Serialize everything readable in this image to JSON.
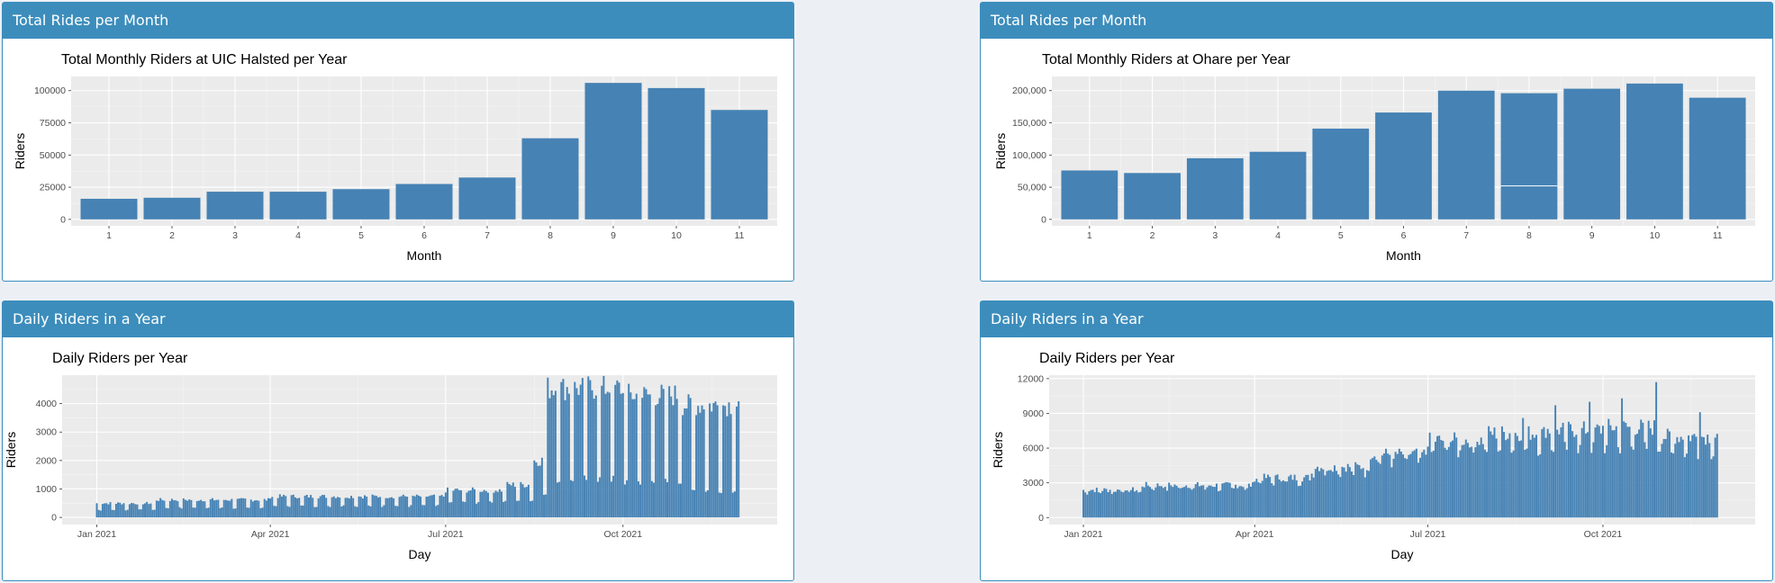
{
  "panels": [
    {
      "header": "Total Rides per Month",
      "chart_data": {
        "type": "bar",
        "title": "Total Monthly Riders at UIC Halsted per Year",
        "xlabel": "Month",
        "ylabel": "Riders",
        "categories": [
          "1",
          "2",
          "3",
          "4",
          "5",
          "6",
          "7",
          "8",
          "9",
          "10",
          "11"
        ],
        "values": [
          16000,
          16800,
          21500,
          21500,
          23500,
          27500,
          32500,
          63000,
          106000,
          102000,
          85000
        ],
        "ylim": [
          -5000,
          111000
        ],
        "yticks": [
          0,
          25000,
          50000,
          75000,
          100000
        ],
        "ytick_labels": [
          "0",
          "25000",
          "50000",
          "75000",
          "100000"
        ],
        "grid": true,
        "bar_color": "#4682b4"
      }
    },
    {
      "header": "Total Rides per Month",
      "chart_data": {
        "type": "bar",
        "title": "Total Monthly Riders at Ohare per Year",
        "xlabel": "Month",
        "ylabel": "Riders",
        "categories": [
          "1",
          "2",
          "3",
          "4",
          "5",
          "6",
          "7",
          "8",
          "9",
          "10",
          "11"
        ],
        "values": [
          76000,
          72000,
          95000,
          105000,
          141000,
          166000,
          200000,
          196000,
          203000,
          211000,
          189000
        ],
        "stack_split": {
          "category": "8",
          "at": 52000
        },
        "ylim": [
          -10000,
          222000
        ],
        "yticks": [
          0,
          50000,
          100000,
          150000,
          200000
        ],
        "ytick_labels": [
          "0",
          "50,000",
          "100,000",
          "150,000",
          "200,000"
        ],
        "grid": true,
        "bar_color": "#4682b4"
      }
    },
    {
      "header": "Daily Riders in a Year",
      "chart_data": {
        "type": "bar",
        "title": "Daily Riders per Year",
        "xlabel": "Day",
        "ylabel": "Riders",
        "x_start": "2021-01-01",
        "x_end": "2021-11-30",
        "xticks": [
          "2021-01-01",
          "2021-04-01",
          "2021-07-01",
          "2021-10-01"
        ],
        "xtick_labels": [
          "Jan 2021",
          "Apr 2021",
          "Jul 2021",
          "Oct 2021"
        ],
        "ylim": [
          -250,
          5000
        ],
        "yticks": [
          0,
          1000,
          2000,
          3000,
          4000
        ],
        "ytick_labels": [
          "0",
          "1000",
          "2000",
          "3000",
          "4000"
        ],
        "weekly_pattern": [
          {
            "end_date": "2021-01-31",
            "weekday": 500,
            "weekend": 260
          },
          {
            "end_date": "2021-03-31",
            "weekday": 620,
            "weekend": 330
          },
          {
            "end_date": "2021-06-30",
            "weekday": 740,
            "weekend": 400
          },
          {
            "end_date": "2021-07-31",
            "weekday": 960,
            "weekend": 520
          },
          {
            "end_date": "2021-08-15",
            "weekday": 1150,
            "weekend": 600
          },
          {
            "end_date": "2021-08-22",
            "weekday": 2000,
            "weekend": 800
          },
          {
            "end_date": "2021-09-30",
            "weekday": 4550,
            "weekend": 1350
          },
          {
            "end_date": "2021-10-31",
            "weekday": 4300,
            "weekend": 1250
          },
          {
            "end_date": "2021-11-30",
            "weekday": 3950,
            "weekend": 950
          }
        ],
        "grid": true,
        "bar_color": "#4682b4"
      }
    },
    {
      "header": "Daily Riders in a Year",
      "chart_data": {
        "type": "bar",
        "title": "Daily Riders per Year",
        "xlabel": "Day",
        "ylabel": "Riders",
        "x_start": "2021-01-01",
        "x_end": "2021-11-30",
        "xticks": [
          "2021-01-01",
          "2021-04-01",
          "2021-07-01",
          "2021-10-01"
        ],
        "xtick_labels": [
          "Jan 2021",
          "Apr 2021",
          "Jul 2021",
          "Oct 2021"
        ],
        "ylim": [
          -600,
          12300
        ],
        "yticks": [
          0,
          3000,
          6000,
          9000,
          12000
        ],
        "ytick_labels": [
          "0",
          "3000",
          "6000",
          "9000",
          "12000"
        ],
        "weekly_pattern": [
          {
            "end_date": "2021-01-31",
            "weekday": 2400,
            "weekend": 2150
          },
          {
            "end_date": "2021-03-31",
            "weekday": 2800,
            "weekend": 2450
          },
          {
            "end_date": "2021-04-30",
            "weekday": 3450,
            "weekend": 3000
          },
          {
            "end_date": "2021-05-31",
            "weekday": 4400,
            "weekend": 3800
          },
          {
            "end_date": "2021-06-30",
            "weekday": 5500,
            "weekend": 4700
          },
          {
            "end_date": "2021-07-31",
            "weekday": 6700,
            "weekend": 5600
          },
          {
            "end_date": "2021-08-31",
            "weekday": 7300,
            "weekend": 5900
          },
          {
            "end_date": "2021-09-30",
            "weekday": 7600,
            "weekend": 6000
          },
          {
            "end_date": "2021-10-31",
            "weekday": 7800,
            "weekend": 6000
          },
          {
            "end_date": "2021-11-30",
            "weekday": 7000,
            "weekend": 5500
          }
        ],
        "peaks": [
          {
            "date": "2021-04-22",
            "value": 3700
          },
          {
            "date": "2021-08-20",
            "value": 8600
          },
          {
            "date": "2021-09-06",
            "value": 9700
          },
          {
            "date": "2021-09-24",
            "value": 10000
          },
          {
            "date": "2021-10-11",
            "value": 10300
          },
          {
            "date": "2021-10-29",
            "value": 11700
          },
          {
            "date": "2021-11-21",
            "value": 9100
          }
        ],
        "grid": true,
        "bar_color": "#4682b4"
      }
    }
  ]
}
